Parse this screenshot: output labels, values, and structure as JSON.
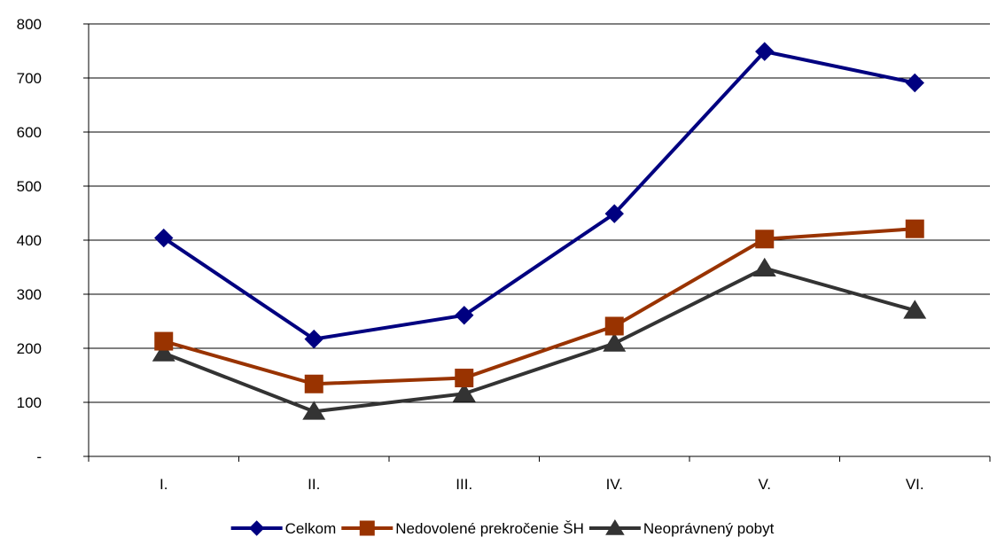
{
  "chart_data": {
    "type": "line",
    "title": "",
    "xlabel": "",
    "ylabel": "",
    "categories": [
      "I.",
      "II.",
      "III.",
      "IV.",
      "V.",
      "VI."
    ],
    "ylim": [
      0,
      800
    ],
    "yticks": [
      0,
      100,
      200,
      300,
      400,
      500,
      600,
      700,
      800
    ],
    "ytick_labels": [
      "-",
      "100",
      "200",
      "300",
      "400",
      "500",
      "600",
      "700",
      "800"
    ],
    "grid": "horizontal",
    "legend_position": "bottom",
    "series": [
      {
        "name": "Celkom",
        "values": [
          404,
          217,
          261,
          449,
          749,
          691
        ],
        "color": "#000080",
        "marker": "diamond"
      },
      {
        "name": "Nedovolené prekročenie ŠH",
        "values": [
          213,
          134,
          145,
          241,
          402,
          421
        ],
        "color": "#993300",
        "marker": "square"
      },
      {
        "name": "Neoprávnený pobyt",
        "values": [
          191,
          83,
          116,
          209,
          348,
          270
        ],
        "color": "#333333",
        "marker": "triangle"
      }
    ]
  }
}
